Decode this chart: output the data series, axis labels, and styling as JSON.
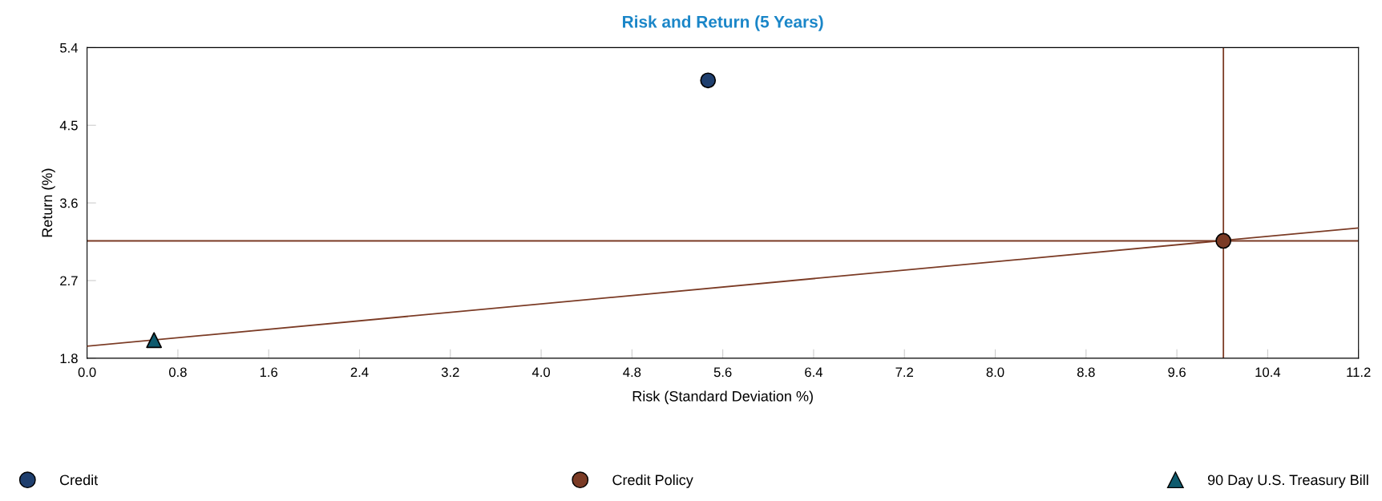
{
  "chart_data": {
    "type": "scatter",
    "title": "Risk and Return (5 Years)",
    "xlabel": "Risk (Standard Deviation %)",
    "ylabel": "Return (%)",
    "series": [
      {
        "type": "line",
        "color": "#7b3b25",
        "x": [
          0.0,
          11.2
        ],
        "values": [
          1.94,
          3.31
        ],
        "marker": "none"
      },
      {
        "name": "Credit",
        "color": "#1f3f6e",
        "x": [
          5.47
        ],
        "values": [
          5.02
        ],
        "marker": "circle"
      },
      {
        "name": "Credit Policy",
        "color": "#7b3b25",
        "x": [
          10.01
        ],
        "values": [
          3.16
        ],
        "marker": "circle"
      },
      {
        "name": "90 Day U.S. Treasury Bill",
        "color": "#0f5b6e",
        "x": [
          0.59
        ],
        "values": [
          2.01
        ],
        "marker": "triangle"
      }
    ],
    "ref_lines": [
      {
        "axis": "y",
        "value": 3.16,
        "color": "#7b3b25"
      },
      {
        "axis": "x",
        "value": 10.01,
        "color": "#7b3b25"
      }
    ],
    "xlim": [
      0.0,
      11.2
    ],
    "xticks": [
      {
        "value": 0.0,
        "label": "0.0"
      },
      0.8,
      1.6,
      2.4,
      3.2,
      {
        "value": 4.0,
        "label": "4.0"
      },
      4.8,
      5.6,
      6.4,
      7.2,
      {
        "value": 8.0,
        "label": "8.0"
      },
      8.8,
      9.6,
      10.4,
      11.2
    ],
    "ylim": [
      1.8,
      5.4
    ],
    "yticks": [
      1.8,
      2.7,
      3.6,
      4.5,
      5.4
    ],
    "grid": false,
    "legend": "bottom"
  }
}
